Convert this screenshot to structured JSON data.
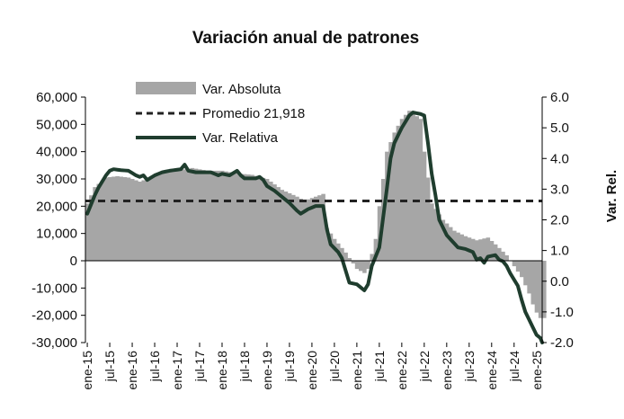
{
  "chart_data": {
    "type": "bar+line",
    "title": "Variación anual de patrones",
    "y_left": {
      "min": -30000,
      "max": 60000,
      "step": 10000,
      "tick_labels": [
        "-30,000",
        "-20,000",
        "-10,000",
        "0",
        "10,000",
        "20,000",
        "30,000",
        "40,000",
        "50,000",
        "60,000"
      ]
    },
    "y_right": {
      "label": "Var. Rel.",
      "min": -2.0,
      "max": 6.0,
      "step": 1.0,
      "tick_labels": [
        "-2.0",
        "-1.0",
        "0.0",
        "1.0",
        "2.0",
        "3.0",
        "4.0",
        "5.0",
        "6.0"
      ]
    },
    "x_tick_labels": [
      "ene-15",
      "jul-15",
      "ene-16",
      "jul-16",
      "ene-17",
      "jul-17",
      "ene-18",
      "jul-18",
      "ene-19",
      "jul-19",
      "ene-20",
      "jul-20",
      "ene-21",
      "jul-21",
      "ene-22",
      "jul-22",
      "ene-23",
      "jul-23",
      "ene-24",
      "jul-24",
      "ene-25"
    ],
    "legend": {
      "placement": "top-left",
      "absolute": "Var. Absoluta",
      "mean": "Promedio 21,918",
      "relative": "Var. Relativa"
    },
    "mean_value": 21918,
    "colors": {
      "bars": "#a6a6a6",
      "line": "#1f3d2e",
      "mean": "#222222"
    },
    "abs_anchors": [
      [
        0,
        21000
      ],
      [
        2,
        27000
      ],
      [
        5,
        30500
      ],
      [
        8,
        31000
      ],
      [
        11,
        30500
      ],
      [
        14,
        29000
      ],
      [
        16,
        30000
      ],
      [
        20,
        32000
      ],
      [
        24,
        33000
      ],
      [
        28,
        34000
      ],
      [
        32,
        33000
      ],
      [
        36,
        33000
      ],
      [
        40,
        32000
      ],
      [
        44,
        31500
      ],
      [
        48,
        30000
      ],
      [
        52,
        26000
      ],
      [
        56,
        23500
      ],
      [
        58,
        22000
      ],
      [
        60,
        23000
      ],
      [
        62,
        24000
      ],
      [
        63,
        24500
      ],
      [
        64,
        12000
      ],
      [
        66,
        8000
      ],
      [
        69,
        3000
      ],
      [
        72,
        -3000
      ],
      [
        74,
        -4500
      ],
      [
        75,
        -3000
      ],
      [
        77,
        8000
      ],
      [
        78,
        20000
      ],
      [
        80,
        40000
      ],
      [
        82,
        47000
      ],
      [
        84,
        52000
      ],
      [
        86,
        55000
      ],
      [
        89,
        52000
      ],
      [
        90,
        40000
      ],
      [
        92,
        21000
      ],
      [
        95,
        15000
      ],
      [
        98,
        11000
      ],
      [
        101,
        9000
      ],
      [
        104,
        7500
      ],
      [
        107,
        8500
      ],
      [
        109,
        6000
      ],
      [
        112,
        2000
      ],
      [
        114,
        -2000
      ],
      [
        116,
        -6000
      ],
      [
        118,
        -12000
      ],
      [
        119,
        -16000
      ],
      [
        120,
        -19000
      ],
      [
        121,
        -21000
      ]
    ],
    "rel_anchors": [
      [
        0,
        2.2
      ],
      [
        1,
        2.5
      ],
      [
        2,
        2.8
      ],
      [
        3,
        3.05
      ],
      [
        4,
        3.25
      ],
      [
        5,
        3.45
      ],
      [
        6,
        3.6
      ],
      [
        7,
        3.65
      ],
      [
        9,
        3.62
      ],
      [
        11,
        3.6
      ],
      [
        13,
        3.45
      ],
      [
        14,
        3.4
      ],
      [
        15,
        3.45
      ],
      [
        16,
        3.3
      ],
      [
        18,
        3.45
      ],
      [
        20,
        3.55
      ],
      [
        22,
        3.6
      ],
      [
        25,
        3.65
      ],
      [
        26,
        3.8
      ],
      [
        27,
        3.6
      ],
      [
        29,
        3.55
      ],
      [
        33,
        3.55
      ],
      [
        35,
        3.45
      ],
      [
        36,
        3.5
      ],
      [
        38,
        3.45
      ],
      [
        40,
        3.6
      ],
      [
        41,
        3.45
      ],
      [
        42,
        3.35
      ],
      [
        45,
        3.35
      ],
      [
        46,
        3.4
      ],
      [
        47,
        3.3
      ],
      [
        48,
        3.1
      ],
      [
        50,
        2.95
      ],
      [
        52,
        2.75
      ],
      [
        54,
        2.55
      ],
      [
        56,
        2.3
      ],
      [
        57,
        2.2
      ],
      [
        59,
        2.35
      ],
      [
        61,
        2.45
      ],
      [
        63,
        2.45
      ],
      [
        64,
        1.7
      ],
      [
        65,
        1.2
      ],
      [
        67,
        0.95
      ],
      [
        68,
        0.75
      ],
      [
        70,
        -0.05
      ],
      [
        72,
        -0.1
      ],
      [
        73,
        -0.2
      ],
      [
        74,
        -0.3
      ],
      [
        75,
        -0.1
      ],
      [
        76,
        0.5
      ],
      [
        78,
        1.1
      ],
      [
        80,
        3.0
      ],
      [
        81,
        4.0
      ],
      [
        82,
        4.5
      ],
      [
        84,
        5.0
      ],
      [
        86,
        5.4
      ],
      [
        87,
        5.5
      ],
      [
        89,
        5.45
      ],
      [
        90,
        5.4
      ],
      [
        91,
        4.5
      ],
      [
        92,
        3.5
      ],
      [
        93,
        2.8
      ],
      [
        94,
        2.0
      ],
      [
        96,
        1.5
      ],
      [
        99,
        1.1
      ],
      [
        101,
        1.05
      ],
      [
        103,
        0.95
      ],
      [
        104,
        0.7
      ],
      [
        105,
        0.75
      ],
      [
        106,
        0.6
      ],
      [
        107,
        0.8
      ],
      [
        109,
        0.85
      ],
      [
        110,
        0.7
      ],
      [
        111,
        0.65
      ],
      [
        112,
        0.5
      ],
      [
        113,
        0.25
      ],
      [
        115,
        -0.15
      ],
      [
        116,
        -0.6
      ],
      [
        117,
        -1.0
      ],
      [
        119,
        -1.5
      ],
      [
        120,
        -1.75
      ],
      [
        121,
        -1.85
      ],
      [
        122,
        -2.0
      ]
    ]
  }
}
